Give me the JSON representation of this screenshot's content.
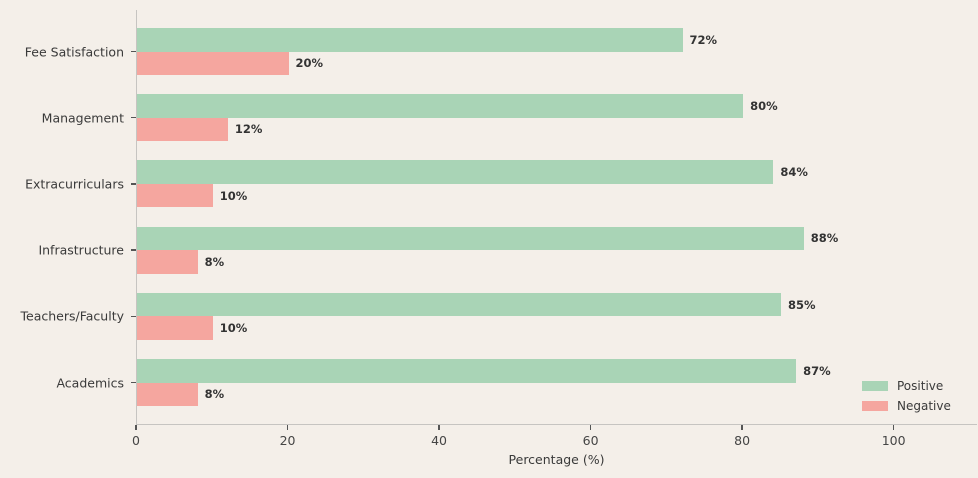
{
  "chart_data": {
    "type": "bar",
    "orientation": "horizontal",
    "title": "",
    "xlabel": "Percentage (%)",
    "ylabel": "",
    "categories": [
      "Fee Satisfaction",
      "Management",
      "Extracurriculars",
      "Infrastructure",
      "Teachers/Faculty",
      "Academics"
    ],
    "series": [
      {
        "name": "Positive",
        "color": "#a9d4b6",
        "values": [
          72,
          80,
          84,
          88,
          85,
          87
        ]
      },
      {
        "name": "Negative",
        "color": "#f5a69f",
        "values": [
          20,
          12,
          10,
          8,
          10,
          8
        ]
      }
    ],
    "value_label_suffix": "%",
    "x_ticks": [
      0,
      20,
      40,
      60,
      80,
      100
    ],
    "xlim": [
      0,
      111
    ],
    "grid": false,
    "legend_position": "lower right",
    "background_color": "#f4efe9",
    "axis_color": "#c6c4c1"
  }
}
